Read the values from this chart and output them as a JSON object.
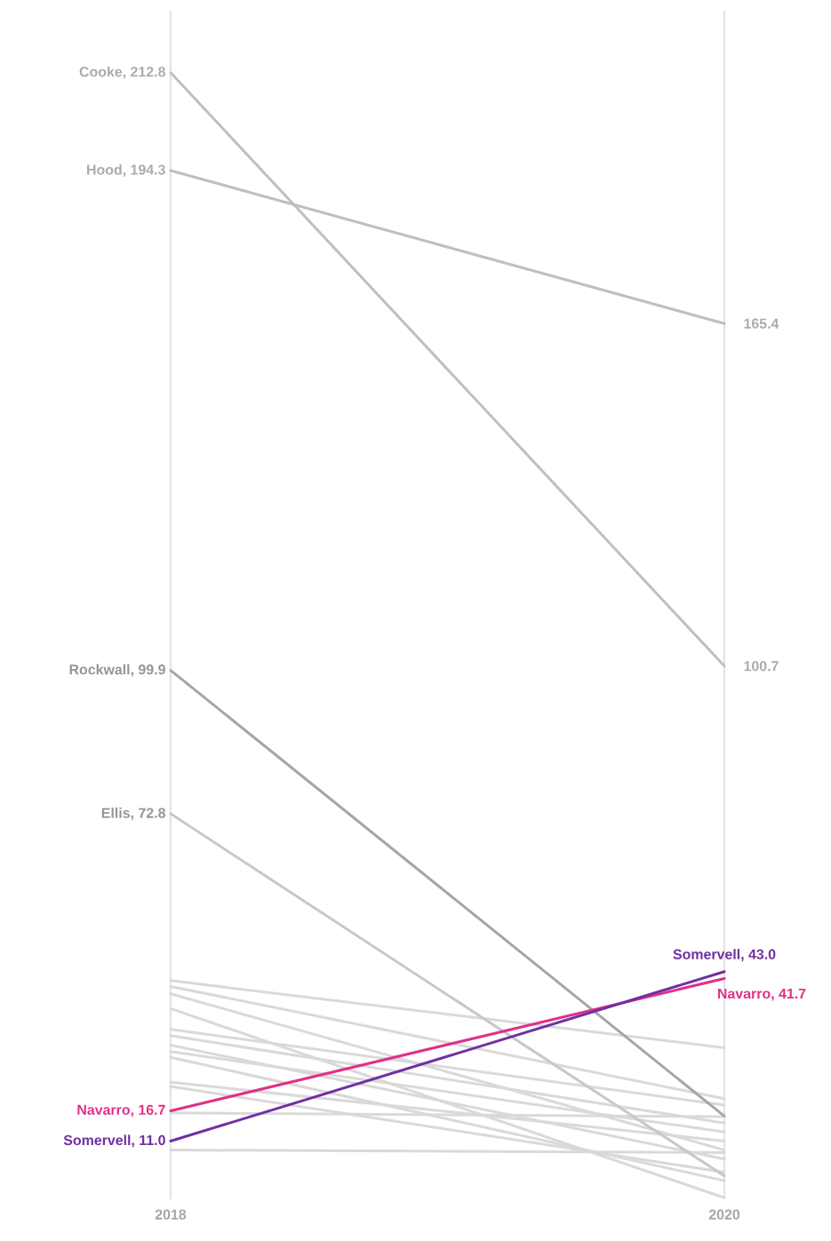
{
  "chart_data": {
    "type": "line",
    "categories": [
      "2018",
      "2020"
    ],
    "ylim": [
      0,
      224.5
    ],
    "grid": "x",
    "marker": "none",
    "tick_labels": "x",
    "series": [
      {
        "color": "#d9d9d9",
        "values": [
          41.3,
          28.6
        ]
      },
      {
        "color": "#d9d9d9",
        "values": [
          40.2,
          19.0
        ]
      },
      {
        "color": "#d9d9d9",
        "values": [
          38.8,
          9.3
        ]
      },
      {
        "color": "#d9d9d9",
        "values": [
          36.0,
          0.3
        ]
      },
      {
        "color": "#d9d9d9",
        "values": [
          32.1,
          17.8
        ]
      },
      {
        "color": "#d9d9d9",
        "values": [
          30.9,
          14.4
        ]
      },
      {
        "color": "#d9d9d9",
        "values": [
          29.1,
          7.6
        ]
      },
      {
        "color": "#d9d9d9",
        "values": [
          27.9,
          12.7
        ]
      },
      {
        "color": "#d9d9d9",
        "values": [
          26.8,
          3.5
        ]
      },
      {
        "color": "#d9d9d9",
        "values": [
          22.1,
          11.0
        ]
      },
      {
        "color": "#d9d9d9",
        "values": [
          21.3,
          5.1
        ]
      },
      {
        "color": "#d9d9d9",
        "values": [
          16.3,
          15.6
        ]
      },
      {
        "color": "#d9d9d9",
        "values": [
          9.3,
          8.8
        ]
      },
      {
        "color": "#c8c8c8",
        "values": [
          72.8,
          4.4
        ],
        "value_labels": [
          "Ellis, 72.8",
          null
        ]
      },
      {
        "color": "#a6a6a6",
        "values": [
          99.9,
          15.7
        ],
        "value_labels": [
          "Rockwall, 99.9",
          null
        ]
      },
      {
        "color": "#bfbfbf",
        "values": [
          194.3,
          165.4
        ],
        "value_labels": [
          "Hood, 194.3",
          "165.4"
        ]
      },
      {
        "color": "#bfbfbf",
        "values": [
          212.8,
          100.7
        ],
        "value_labels": [
          "Cooke, 212.8",
          "100.7"
        ]
      },
      {
        "color": "#e0308a",
        "values": [
          16.7,
          41.7
        ],
        "value_labels": [
          "Navarro, 16.7",
          "Navarro, 41.7"
        ]
      },
      {
        "color": "#7030a0",
        "values": [
          11.0,
          43.0
        ],
        "value_labels": [
          "Somervell, 11.0",
          "Somervell, 43.0"
        ]
      }
    ]
  }
}
